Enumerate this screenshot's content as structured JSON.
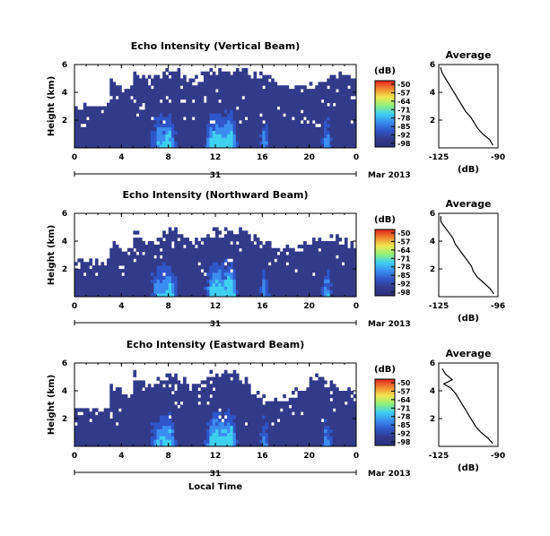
{
  "chart_data": [
    {
      "type": "heatmap",
      "title": "Echo Intensity (Vertical Beam)",
      "ylabel": "Height (km)",
      "xlim": [
        0,
        24
      ],
      "ylim": [
        0,
        6
      ],
      "x_ticks": [
        "0",
        "4",
        "8",
        "12",
        "16",
        "20",
        "0"
      ],
      "y_ticks": [
        "6",
        "4",
        "2"
      ],
      "date_day": "31",
      "date_label": "Mar 2013",
      "colorbar_label": "(dB)",
      "colorbar_ticks": [
        "-50",
        "-57",
        "-64",
        "-71",
        "-78",
        "-85",
        "-92",
        "-98"
      ],
      "profile_title": "Average",
      "profile_xlabel": "(dB)",
      "profile_x_ticks": [
        "-125",
        "-90"
      ],
      "profile_y_ticks": [
        "6",
        "4",
        "2"
      ],
      "profile_xlim": [
        -125,
        -90
      ],
      "profile_ylim": [
        0,
        6
      ],
      "profile": [
        [
          -93,
          0.2
        ],
        [
          -95,
          0.6
        ],
        [
          -99,
          1.0
        ],
        [
          -102,
          1.4
        ],
        [
          -104,
          1.8
        ],
        [
          -106,
          2.2
        ],
        [
          -109,
          2.6
        ],
        [
          -111,
          3.0
        ],
        [
          -113,
          3.4
        ],
        [
          -115,
          3.8
        ],
        [
          -117,
          4.2
        ],
        [
          -119,
          4.6
        ],
        [
          -121,
          5.0
        ],
        [
          -123,
          5.4
        ],
        [
          -124,
          5.8
        ]
      ]
    },
    {
      "type": "heatmap",
      "title": "Echo Intensity (Northward Beam)",
      "ylabel": "Height (km)",
      "xlim": [
        0,
        24
      ],
      "ylim": [
        0,
        6
      ],
      "x_ticks": [
        "0",
        "4",
        "8",
        "12",
        "16",
        "20",
        "0"
      ],
      "y_ticks": [
        "6",
        "4",
        "2"
      ],
      "date_day": "31",
      "date_label": "Mar 2013",
      "colorbar_label": "(dB)",
      "colorbar_ticks": [
        "-50",
        "-57",
        "-64",
        "-71",
        "-78",
        "-85",
        "-92",
        "-98"
      ],
      "profile_title": "Average",
      "profile_xlabel": "(dB)",
      "profile_x_ticks": [
        "-125",
        "-96"
      ],
      "profile_y_ticks": [
        "6",
        "4",
        "2"
      ],
      "profile_xlim": [
        -125,
        -96
      ],
      "profile_ylim": [
        0,
        6
      ],
      "profile": [
        [
          -98,
          0.2
        ],
        [
          -100,
          0.6
        ],
        [
          -103,
          1.0
        ],
        [
          -106,
          1.4
        ],
        [
          -108,
          1.8
        ],
        [
          -109,
          2.2
        ],
        [
          -111,
          2.6
        ],
        [
          -113,
          3.0
        ],
        [
          -115,
          3.4
        ],
        [
          -117,
          3.8
        ],
        [
          -118,
          4.2
        ],
        [
          -120,
          4.6
        ],
        [
          -122,
          5.0
        ],
        [
          -124,
          5.4
        ],
        [
          -124,
          5.8
        ]
      ]
    },
    {
      "type": "heatmap",
      "title": "Echo Intensity (Eastward Beam)",
      "ylabel": "Height (km)",
      "xlabel": "Local Time",
      "xlim": [
        0,
        24
      ],
      "ylim": [
        0,
        6
      ],
      "x_ticks": [
        "0",
        "4",
        "8",
        "12",
        "16",
        "20",
        "0"
      ],
      "y_ticks": [
        "6",
        "4",
        "2"
      ],
      "date_day": "31",
      "date_label": "Mar 2013",
      "colorbar_label": "(dB)",
      "colorbar_ticks": [
        "-50",
        "-57",
        "-64",
        "-71",
        "-78",
        "-85",
        "-92",
        "-98"
      ],
      "profile_title": "Average",
      "profile_xlabel": "(dB)",
      "profile_x_ticks": [
        "-125",
        "-90"
      ],
      "profile_y_ticks": [
        "6",
        "4",
        "2"
      ],
      "profile_xlim": [
        -125,
        -90
      ],
      "profile_ylim": [
        0,
        6
      ],
      "profile": [
        [
          -93,
          0.2
        ],
        [
          -96,
          0.6
        ],
        [
          -100,
          1.0
        ],
        [
          -103,
          1.4
        ],
        [
          -105,
          1.8
        ],
        [
          -107,
          2.2
        ],
        [
          -109,
          2.6
        ],
        [
          -111,
          3.0
        ],
        [
          -113,
          3.4
        ],
        [
          -115,
          3.8
        ],
        [
          -118,
          4.2
        ],
        [
          -122,
          4.5
        ],
        [
          -117,
          4.8
        ],
        [
          -121,
          5.2
        ],
        [
          -123,
          5.6
        ]
      ]
    }
  ],
  "colors": {
    "background": "#323a8a",
    "colormap": [
      "#2b2f7a",
      "#323a8a",
      "#2f56c8",
      "#3b8df0",
      "#3fd0f0",
      "#8ff07a",
      "#f0e850",
      "#f08a30",
      "#e02020"
    ]
  }
}
